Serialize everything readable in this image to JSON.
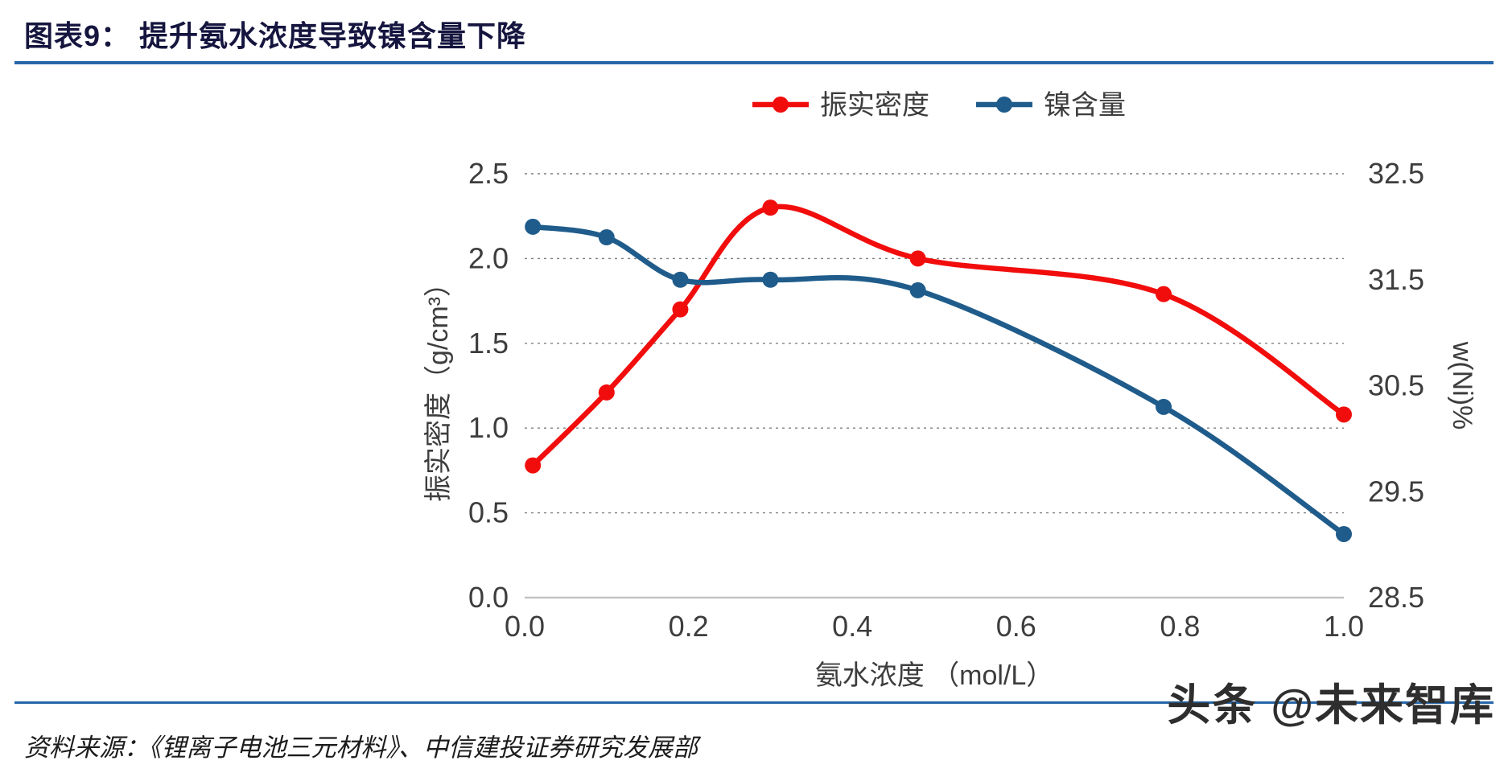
{
  "page": {
    "title": "图表9：  提升氨水浓度导致镍含量下降",
    "source": "资料来源：《锂离子电池三元材料》、中信建投证券研究发展部",
    "watermark": "头条 @未来智库"
  },
  "colors": {
    "rule": "#2666a8",
    "series_red": "#f20d0d",
    "series_blue": "#1f5c8b",
    "grid": "#7f7f7f",
    "axis_line": "#c3c3c3",
    "tick_text": "#3d3d3d"
  },
  "chart_data": {
    "type": "line",
    "title": "提升氨水浓度导致镍含量下降",
    "x": [
      0.01,
      0.1,
      0.19,
      0.3,
      0.48,
      0.78,
      1.0
    ],
    "series": [
      {
        "name": "振实密度",
        "axis": "left",
        "color": "#f20d0d",
        "values": [
          0.78,
          1.21,
          1.7,
          2.3,
          2.0,
          1.79,
          1.08
        ]
      },
      {
        "name": "镍含量",
        "axis": "right",
        "color": "#1f5c8b",
        "values": [
          32.0,
          31.9,
          31.5,
          31.5,
          31.4,
          30.3,
          29.1
        ]
      }
    ],
    "xlabel": "氨水浓度 （mol/L）",
    "ylabel_left": "振实密度（g/cm³）",
    "ylabel_right": "w(Ni)%",
    "xlim": [
      0.0,
      1.0
    ],
    "ylim_left": [
      0.0,
      2.5
    ],
    "ylim_right": [
      28.5,
      32.5
    ],
    "x_ticks": [
      0.0,
      0.2,
      0.4,
      0.6,
      0.8,
      1.0
    ],
    "left_ticks": [
      0.0,
      0.5,
      1.0,
      1.5,
      2.0,
      2.5
    ],
    "right_ticks": [
      28.5,
      29.5,
      30.5,
      31.5,
      32.5
    ],
    "grid": "horizontal-dotted",
    "legend_position": "top-center"
  }
}
